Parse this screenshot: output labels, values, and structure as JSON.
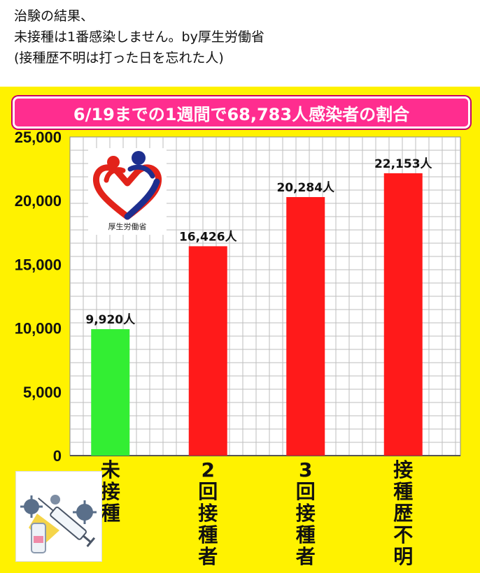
{
  "caption": {
    "line1": "治験の結果、",
    "line2": "未接種は1番感染しません。by厚生労働省",
    "line3": "(接種歴不明は打った日を忘れた人)"
  },
  "logo_label": "厚生労働省",
  "chart_data": {
    "type": "bar",
    "title": "6/19までの1週間で68,783人感染者の割合",
    "categories": [
      "未接種",
      "2回接種者",
      "3回接種者",
      "接種歴不明"
    ],
    "values": [
      9920,
      16426,
      20284,
      22153
    ],
    "data_labels": [
      "9,920人",
      "16,426人",
      "20,284人",
      "22,153人"
    ],
    "yticks": [
      "0",
      "5,000",
      "10,000",
      "15,000",
      "20,000",
      "25,000"
    ],
    "ylim": [
      0,
      25000
    ],
    "bar_colors": [
      "#33ee33",
      "#ff1a1a",
      "#ff1a1a",
      "#ff1a1a"
    ],
    "grid": true
  },
  "colors": {
    "panel": "#fff200",
    "banner": "#ff2d8f"
  }
}
